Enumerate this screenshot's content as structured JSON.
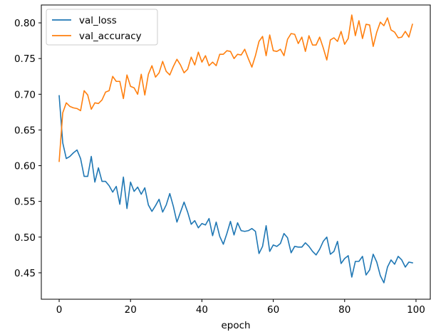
{
  "chart_data": {
    "type": "line",
    "title": "",
    "xlabel": "epoch",
    "ylabel": "",
    "xlim": [
      -5,
      104
    ],
    "ylim": [
      0.413,
      0.825
    ],
    "xticks": [
      0,
      20,
      40,
      60,
      80,
      100
    ],
    "yticks": [
      0.45,
      0.5,
      0.55,
      0.6,
      0.65,
      0.7,
      0.75,
      0.8
    ],
    "ytick_labels": [
      "0.45",
      "0.50",
      "0.55",
      "0.60",
      "0.65",
      "0.70",
      "0.75",
      "0.80"
    ],
    "xtick_labels": [
      "0",
      "20",
      "40",
      "60",
      "80",
      "100"
    ],
    "grid": false,
    "legend_position": "top-left",
    "series": [
      {
        "name": "val_loss",
        "color": "#1f77b4",
        "values": [
          0.698,
          0.632,
          0.61,
          0.613,
          0.618,
          0.622,
          0.61,
          0.585,
          0.585,
          0.613,
          0.577,
          0.597,
          0.578,
          0.578,
          0.572,
          0.563,
          0.571,
          0.546,
          0.584,
          0.54,
          0.577,
          0.564,
          0.57,
          0.56,
          0.569,
          0.545,
          0.536,
          0.544,
          0.553,
          0.535,
          0.545,
          0.561,
          0.543,
          0.521,
          0.535,
          0.549,
          0.535,
          0.518,
          0.523,
          0.513,
          0.519,
          0.517,
          0.526,
          0.502,
          0.521,
          0.501,
          0.49,
          0.505,
          0.522,
          0.503,
          0.52,
          0.509,
          0.508,
          0.509,
          0.512,
          0.508,
          0.477,
          0.487,
          0.516,
          0.48,
          0.489,
          0.487,
          0.491,
          0.505,
          0.499,
          0.478,
          0.487,
          0.486,
          0.486,
          0.492,
          0.487,
          0.48,
          0.475,
          0.483,
          0.494,
          0.5,
          0.476,
          0.48,
          0.494,
          0.463,
          0.47,
          0.474,
          0.444,
          0.466,
          0.466,
          0.473,
          0.447,
          0.454,
          0.476,
          0.465,
          0.446,
          0.436,
          0.458,
          0.468,
          0.462,
          0.473,
          0.468,
          0.458,
          0.465,
          0.464
        ]
      },
      {
        "name": "val_accuracy",
        "color": "#ff7f0e",
        "values": [
          0.606,
          0.674,
          0.688,
          0.683,
          0.681,
          0.68,
          0.677,
          0.705,
          0.699,
          0.679,
          0.688,
          0.687,
          0.692,
          0.703,
          0.705,
          0.725,
          0.718,
          0.718,
          0.694,
          0.727,
          0.711,
          0.709,
          0.7,
          0.728,
          0.699,
          0.728,
          0.74,
          0.724,
          0.73,
          0.746,
          0.732,
          0.727,
          0.739,
          0.749,
          0.741,
          0.73,
          0.735,
          0.752,
          0.741,
          0.759,
          0.745,
          0.754,
          0.74,
          0.745,
          0.74,
          0.756,
          0.756,
          0.761,
          0.76,
          0.75,
          0.756,
          0.755,
          0.763,
          0.75,
          0.738,
          0.754,
          0.774,
          0.781,
          0.754,
          0.783,
          0.761,
          0.76,
          0.763,
          0.754,
          0.777,
          0.785,
          0.784,
          0.771,
          0.78,
          0.76,
          0.782,
          0.769,
          0.769,
          0.78,
          0.765,
          0.748,
          0.776,
          0.779,
          0.774,
          0.788,
          0.77,
          0.778,
          0.811,
          0.782,
          0.803,
          0.778,
          0.798,
          0.797,
          0.767,
          0.787,
          0.801,
          0.796,
          0.807,
          0.79,
          0.787,
          0.779,
          0.78,
          0.788,
          0.78,
          0.798
        ]
      }
    ]
  }
}
